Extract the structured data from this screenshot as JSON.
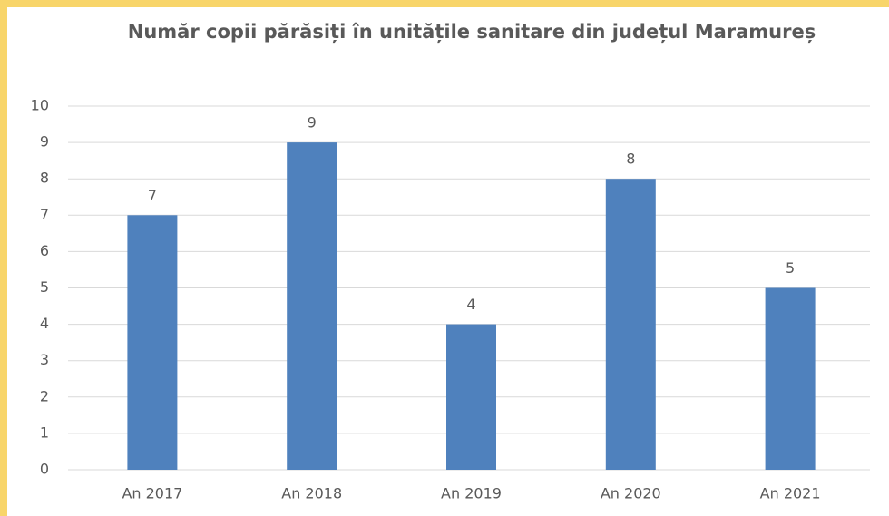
{
  "chart_data": {
    "type": "bar",
    "title": "Număr copii părăsiți în unitățile sanitare din județul Maramureș",
    "categories": [
      "An 2017",
      "An 2018",
      "An 2019",
      "An 2020",
      "An 2021"
    ],
    "values": [
      7,
      9,
      4,
      8,
      5
    ],
    "color": "#4f81bd",
    "ylim": [
      0,
      10
    ],
    "yticks": [
      0,
      1,
      2,
      3,
      4,
      5,
      6,
      7,
      8,
      9,
      10
    ],
    "grid": true
  }
}
